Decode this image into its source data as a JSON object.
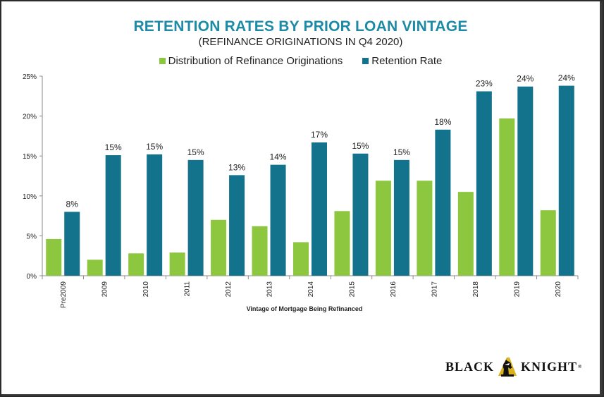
{
  "header": {
    "title": "RETENTION RATES BY PRIOR LOAN VINTAGE",
    "subtitle": "(REFINANCE ORIGINATIONS IN Q4 2020)"
  },
  "brand": {
    "word_left": "BLACK",
    "word_right": "KNIGHT",
    "registered_mark": "®",
    "logo_icon": "knight-chess-piece-icon"
  },
  "colors": {
    "distribution": "#8dc63f",
    "retention": "#13728c",
    "title": "#1d8aa6"
  },
  "chart_data": {
    "type": "bar",
    "title": "RETENTION RATES BY PRIOR LOAN VINTAGE",
    "subtitle": "(REFINANCE ORIGINATIONS IN Q4 2020)",
    "xlabel": "Vintage of Mortgage Being Refinanced",
    "ylabel": "",
    "ylim": [
      0,
      25
    ],
    "yticks": [
      "0%",
      "5%",
      "10%",
      "15%",
      "20%",
      "25%"
    ],
    "grid": false,
    "legend_position": "top",
    "categories": [
      "Pre2009",
      "2009",
      "2010",
      "2011",
      "2012",
      "2013",
      "2014",
      "2015",
      "2016",
      "2017",
      "2018",
      "2019",
      "2020"
    ],
    "series": [
      {
        "name": "Distribution of Refinance Originations",
        "values": [
          4.6,
          2.0,
          2.8,
          2.9,
          7.0,
          6.2,
          4.2,
          8.1,
          11.9,
          11.9,
          10.5,
          19.7,
          8.2
        ]
      },
      {
        "name": "Retention Rate",
        "values": [
          8.0,
          15.1,
          15.2,
          14.5,
          12.6,
          13.9,
          16.7,
          15.3,
          14.5,
          18.3,
          23.1,
          23.7,
          23.8
        ],
        "data_labels": [
          "8%",
          "15%",
          "15%",
          "15%",
          "13%",
          "14%",
          "17%",
          "15%",
          "15%",
          "18%",
          "23%",
          "24%",
          "24%"
        ]
      }
    ]
  }
}
